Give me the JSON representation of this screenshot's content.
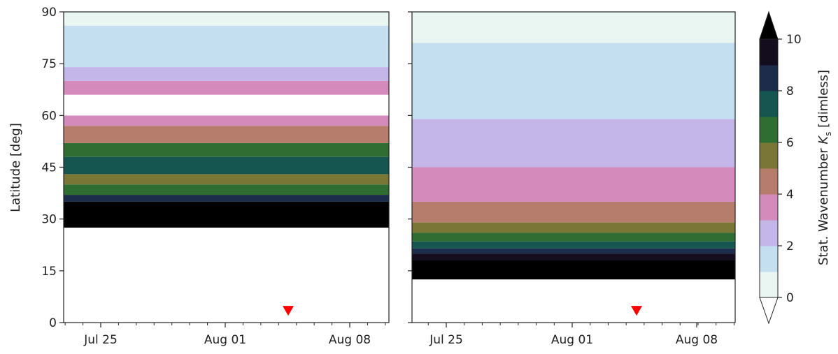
{
  "chart_data": [
    {
      "type": "heatmap",
      "panel": "left",
      "ylabel": "Latitude [deg]",
      "xlabel": "",
      "ylim": [
        0,
        90
      ],
      "yticks": [
        0,
        15,
        30,
        45,
        60,
        75,
        90
      ],
      "x_tick_labels": [
        "Jul 25",
        "Aug 01",
        "Aug 08"
      ],
      "marker": {
        "x": "Aug 04",
        "y": 3,
        "shape": "triangle-down",
        "color": "#ff0000"
      },
      "bands": [
        {
          "y0": 0,
          "y1": 27.5,
          "level": -1
        },
        {
          "y0": 27.5,
          "y1": 35,
          "level": 10
        },
        {
          "y0": 35,
          "y1": 37,
          "level": 8.5
        },
        {
          "y0": 37,
          "y1": 40,
          "level": 6.5
        },
        {
          "y0": 40,
          "y1": 43,
          "level": 5.5
        },
        {
          "y0": 43,
          "y1": 48,
          "level": 7.5
        },
        {
          "y0": 48,
          "y1": 52,
          "level": 6.5
        },
        {
          "y0": 52,
          "y1": 57,
          "level": 4.5
        },
        {
          "y0": 57,
          "y1": 60,
          "level": 3.5
        },
        {
          "y0": 60,
          "y1": 66,
          "level": -1
        },
        {
          "y0": 66,
          "y1": 70,
          "level": 3.5
        },
        {
          "y0": 70,
          "y1": 74,
          "level": 2.5
        },
        {
          "y0": 74,
          "y1": 80,
          "level": 1.5
        },
        {
          "y0": 80,
          "y1": 86,
          "level": 1.5
        },
        {
          "y0": 86,
          "y1": 90,
          "level": 0.5
        }
      ]
    },
    {
      "type": "heatmap",
      "panel": "right",
      "ylim": [
        0,
        90
      ],
      "yticks": [
        0,
        15,
        30,
        45,
        60,
        75,
        90
      ],
      "x_tick_labels": [
        "Jul 25",
        "Aug 01",
        "Aug 08"
      ],
      "marker": {
        "x": "Aug 04",
        "y": 3,
        "shape": "triangle-down",
        "color": "#ff0000"
      },
      "bands": [
        {
          "y0": 0,
          "y1": 12.5,
          "level": -1
        },
        {
          "y0": 12.5,
          "y1": 18,
          "level": 10
        },
        {
          "y0": 18,
          "y1": 20,
          "level": 9.5
        },
        {
          "y0": 20,
          "y1": 21.5,
          "level": 8.5
        },
        {
          "y0": 21.5,
          "y1": 23.5,
          "level": 7.5
        },
        {
          "y0": 23.5,
          "y1": 26,
          "level": 6.5
        },
        {
          "y0": 26,
          "y1": 29,
          "level": 5.5
        },
        {
          "y0": 29,
          "y1": 35,
          "level": 4.5
        },
        {
          "y0": 35,
          "y1": 45,
          "level": 3.5
        },
        {
          "y0": 45,
          "y1": 59,
          "level": 2.5
        },
        {
          "y0": 59,
          "y1": 81,
          "level": 1.5
        },
        {
          "y0": 81,
          "y1": 90,
          "level": 0.5
        }
      ]
    }
  ],
  "colorbar": {
    "label_text": "Stat. Wavenumber ",
    "label_symbol": "K",
    "label_subscript": "s",
    "label_suffix": " [dimless]",
    "min": 0,
    "max": 10,
    "tick_labels": [
      "0",
      "2",
      "4",
      "6",
      "8",
      "10"
    ],
    "extend": "both",
    "levels_colors": [
      "#e9f6f1",
      "#c4dff0",
      "#c5b6ea",
      "#d48bbc",
      "#b67c6c",
      "#7a7736",
      "#2f6d33",
      "#155650",
      "#1c2d4c",
      "#140d1e"
    ],
    "over_color": "#000000",
    "under_color": "#ffffff"
  }
}
